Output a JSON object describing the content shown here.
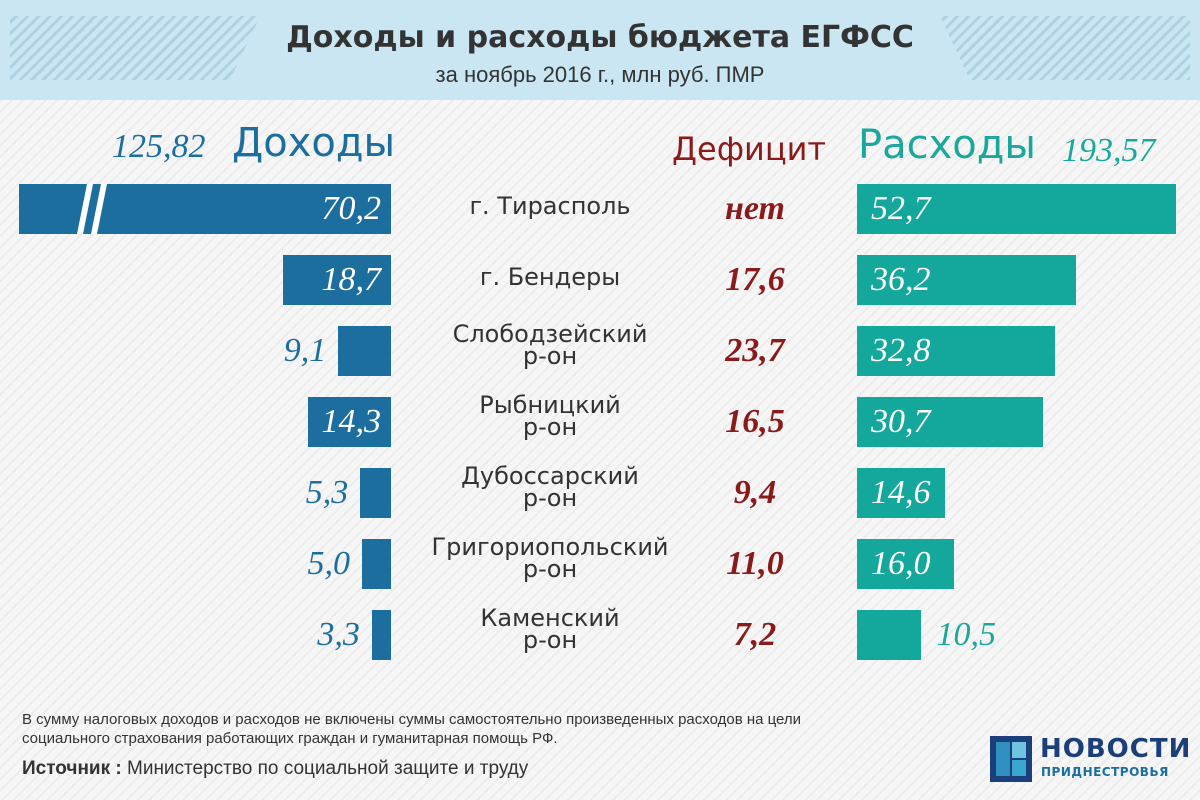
{
  "header": {
    "title": "Доходы и расходы бюджета ЕГФСС",
    "subtitle": "за ноябрь 2016 г., млн руб. ПМР"
  },
  "columns": {
    "income_label": "Доходы",
    "income_total": "125,82",
    "deficit_label": "Дефицит",
    "expense_label": "Расходы",
    "expense_total": "193,57"
  },
  "chart_data": {
    "type": "bar",
    "title": "Доходы и расходы бюджета ЕГФСС",
    "categories": [
      "г. Тирасполь",
      "г. Бендеры",
      "Слободзейский р-он",
      "Рыбницкий р-он",
      "Дубоссарский р-он",
      "Григориопольский р-он",
      "Каменский р-он"
    ],
    "category_lines": [
      [
        "г. Тирасполь"
      ],
      [
        "г. Бендеры"
      ],
      [
        "Слободзейский",
        "р-он"
      ],
      [
        "Рыбницкий",
        "р-он"
      ],
      [
        "Дубоссарский",
        "р-он"
      ],
      [
        "Григориопольский",
        "р-он"
      ],
      [
        "Каменский",
        "р-он"
      ]
    ],
    "series": [
      {
        "name": "Доходы",
        "values": [
          70.2,
          18.7,
          9.1,
          14.3,
          5.3,
          5.0,
          3.3
        ],
        "labels": [
          "70,2",
          "18,7",
          "9,1",
          "14,3",
          "5,3",
          "5,0",
          "3,3"
        ]
      },
      {
        "name": "Дефицит",
        "values": [
          null,
          17.6,
          23.7,
          16.5,
          9.4,
          11.0,
          7.2
        ],
        "labels": [
          "нет",
          "17,6",
          "23,7",
          "16,5",
          "9,4",
          "11,0",
          "7,2"
        ]
      },
      {
        "name": "Расходы",
        "values": [
          52.7,
          36.2,
          32.8,
          30.7,
          14.6,
          16.0,
          10.5
        ],
        "labels": [
          "52,7",
          "36,2",
          "32,8",
          "30,7",
          "14,6",
          "16,0",
          "10,5"
        ]
      }
    ],
    "totals": {
      "Доходы": "125,82",
      "Расходы": "193,57"
    },
    "axis_break_on": "г. Тирасполь (Доходы)"
  },
  "footer": {
    "note": "В сумму налоговых доходов и расходов не включены суммы самостоятельно произведенных расходов на цели социального страхования работающих граждан и гуманитарная помощь РФ.",
    "source_label": "Источник :",
    "source_text": "Министерство по социальной защите и труду"
  },
  "logo": {
    "line1": "НОВОСТИ",
    "line2": "ПРИДНЕСТРОВЬЯ"
  },
  "colors": {
    "income": "#1b6e9e",
    "expense": "#13a89b",
    "deficit": "#8b1a1a",
    "header_bg": "#c9e6f2"
  }
}
